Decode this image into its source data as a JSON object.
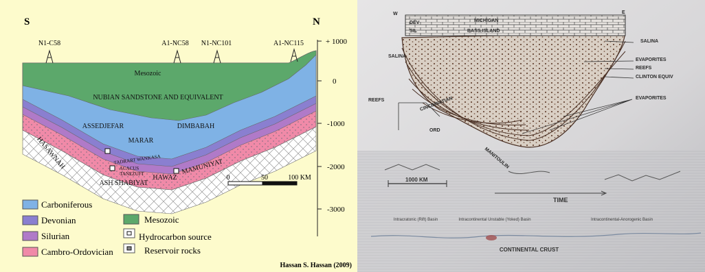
{
  "left_panel": {
    "compass": {
      "south": "S",
      "north": "N"
    },
    "wells": [
      "N1-C58",
      "A1-NC58",
      "N1-NC101",
      "A1-NC115"
    ],
    "depth_ticks": [
      "+ 1000",
      "0",
      "-1000",
      "-2000",
      "-3000"
    ],
    "formations": {
      "mesozoic": "Mesozoic",
      "nubian": "NUBIAN SANDSTONE AND EQUIVALENT",
      "assedjefar": "ASSEDJEFAR",
      "dimbabah": "DIMBABAH",
      "marar": "MARAR",
      "tadrart": "TADRART WANKASA",
      "acacus": "ACACUS",
      "tanezuft": "TANEZUFT",
      "ash_shabiyat": "ASH SHABIYAT",
      "hawaz": "HAWAZ",
      "mamuniyat": "MAMUNIYAT",
      "hasawnah": "HASAWNAH"
    },
    "scale": [
      "0",
      "50",
      "100 KM"
    ],
    "legend": {
      "carboniferous": "Carboniferous",
      "devonian": "Devonian",
      "silurian": "Silurian",
      "cambro_ordovician": "Cambro-Ordovician",
      "mesozoic": "Mesozoic",
      "source": "Hydrocarbon source",
      "reservoir": "Reservoir rocks"
    },
    "credit": "Hassan S. Hassan (2009)"
  },
  "right_panel": {
    "compass": {
      "west": "W",
      "east": "E"
    },
    "labels": {
      "michigan": "MICHIGAN",
      "bass_island": "BASS ISLAND",
      "dev": "DEV",
      "sil": "SIL",
      "salina_right": "SALINA",
      "salina_left": "SALINA",
      "evaporites_top": "EVAPORITES",
      "reefs_right": "REEFS",
      "clinton": "CLINTON EQUIV",
      "reefs_left": "REEFS",
      "evaporites_low": "EVAPORITES",
      "cincinnatian": "CINCINNATIAN",
      "ord": "ORD",
      "manitoulin": "MANITOULIN"
    },
    "scale": "1000 KM",
    "time": "TIME",
    "basins": [
      "Intracratonic (Rift) Basin",
      "Intracontinental Unstable (Yoked) Basin",
      "Intracontinental-Anorogenic Basin"
    ],
    "crust": "CONTINENTAL CRUST"
  }
}
